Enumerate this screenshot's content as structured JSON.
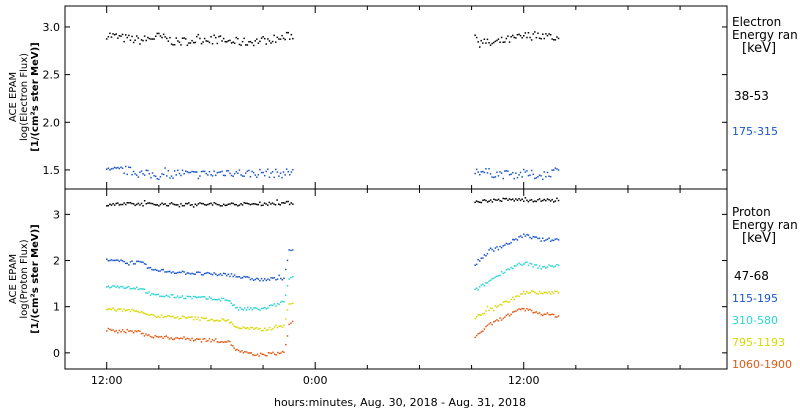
{
  "chart_data": [
    {
      "type": "scatter",
      "panel": "electron",
      "ylabel_lines": [
        "ACE EPAM",
        "log(Electron Flux)",
        "[1/(cm²s ster MeV)]"
      ],
      "legend_title": [
        "Electron",
        "Energy ran",
        "[keV]"
      ],
      "ylim": [
        1.3,
        3.22
      ],
      "y_ticks": [
        "3.0",
        "2.5",
        "2.0",
        "1.5"
      ],
      "gaps": [
        [
          10.8,
          21.2
        ]
      ],
      "series": [
        {
          "name": "38-53",
          "color": "#000000",
          "points": [
            [
              0,
              2.92
            ],
            [
              1,
              2.88
            ],
            [
              2,
              2.86
            ],
            [
              3,
              2.9
            ],
            [
              4,
              2.84
            ],
            [
              5,
              2.86
            ],
            [
              6,
              2.88
            ],
            [
              7,
              2.85
            ],
            [
              8,
              2.84
            ],
            [
              9,
              2.86
            ],
            [
              10,
              2.88
            ],
            [
              10.8,
              2.92
            ],
            [
              21.2,
              2.9
            ],
            [
              22,
              2.82
            ],
            [
              23,
              2.86
            ],
            [
              24,
              2.9
            ],
            [
              25,
              2.92
            ],
            [
              26,
              2.88
            ]
          ]
        },
        {
          "name": "175-315",
          "color": "#1a55cc",
          "points": [
            [
              0,
              1.48
            ],
            [
              1,
              1.5
            ],
            [
              2,
              1.46
            ],
            [
              3,
              1.44
            ],
            [
              4,
              1.47
            ],
            [
              5,
              1.45
            ],
            [
              6,
              1.46
            ],
            [
              7,
              1.48
            ],
            [
              8,
              1.46
            ],
            [
              9,
              1.47
            ],
            [
              10,
              1.46
            ],
            [
              10.8,
              1.48
            ],
            [
              21.2,
              1.5
            ],
            [
              22,
              1.47
            ],
            [
              23,
              1.45
            ],
            [
              24,
              1.46
            ],
            [
              25,
              1.44
            ],
            [
              26,
              1.5
            ]
          ]
        }
      ]
    },
    {
      "type": "scatter",
      "panel": "proton",
      "ylabel_lines": [
        "ACE EPAM",
        "log(Proton Flux)",
        "[1/(cm²s ster MeV)]"
      ],
      "legend_title": [
        "Proton",
        "Energy ran",
        "[keV]"
      ],
      "ylim": [
        -0.35,
        3.55
      ],
      "y_ticks": [
        "3",
        "2",
        "1",
        "0"
      ],
      "gaps": [
        [
          10.8,
          21.2
        ]
      ],
      "series": [
        {
          "name": "47-68",
          "color": "#000000",
          "points": [
            [
              0,
              3.22
            ],
            [
              2,
              3.22
            ],
            [
              4,
              3.22
            ],
            [
              6,
              3.22
            ],
            [
              8,
              3.22
            ],
            [
              10.8,
              3.25
            ],
            [
              21.2,
              3.28
            ],
            [
              23,
              3.32
            ],
            [
              26,
              3.3
            ]
          ]
        },
        {
          "name": "115-195",
          "color": "#1a55cc",
          "points": [
            [
              0,
              2.0
            ],
            [
              2,
              1.95
            ],
            [
              2.6,
              1.8
            ],
            [
              4,
              1.75
            ],
            [
              6,
              1.7
            ],
            [
              7,
              1.7
            ],
            [
              8,
              1.62
            ],
            [
              9,
              1.58
            ],
            [
              10.2,
              1.62
            ],
            [
              10.5,
              2.2
            ],
            [
              10.8,
              2.2
            ],
            [
              21.2,
              1.92
            ],
            [
              22,
              2.2
            ],
            [
              23,
              2.35
            ],
            [
              24,
              2.55
            ],
            [
              25,
              2.45
            ],
            [
              26,
              2.45
            ]
          ]
        },
        {
          "name": "310-580",
          "color": "#2ad4d4",
          "points": [
            [
              0,
              1.45
            ],
            [
              2,
              1.4
            ],
            [
              2.6,
              1.25
            ],
            [
              5,
              1.2
            ],
            [
              7,
              1.15
            ],
            [
              7.5,
              0.95
            ],
            [
              9,
              0.95
            ],
            [
              10.2,
              1.1
            ],
            [
              10.5,
              1.6
            ],
            [
              10.8,
              1.65
            ],
            [
              21.2,
              1.35
            ],
            [
              22,
              1.55
            ],
            [
              23,
              1.8
            ],
            [
              24,
              1.95
            ],
            [
              25,
              1.85
            ],
            [
              26,
              1.9
            ]
          ]
        },
        {
          "name": "795-1193",
          "color": "#d8d800",
          "points": [
            [
              0,
              0.95
            ],
            [
              2,
              0.9
            ],
            [
              2.6,
              0.8
            ],
            [
              5,
              0.75
            ],
            [
              7,
              0.7
            ],
            [
              7.5,
              0.55
            ],
            [
              9,
              0.5
            ],
            [
              10.2,
              0.6
            ],
            [
              10.5,
              1.05
            ],
            [
              10.8,
              1.1
            ],
            [
              21.2,
              0.75
            ],
            [
              22,
              0.95
            ],
            [
              23,
              1.1
            ],
            [
              24,
              1.3
            ],
            [
              25,
              1.3
            ],
            [
              26,
              1.3
            ]
          ]
        },
        {
          "name": "1060-1900",
          "color": "#e05a14",
          "points": [
            [
              0,
              0.5
            ],
            [
              2,
              0.45
            ],
            [
              2.6,
              0.35
            ],
            [
              5,
              0.3
            ],
            [
              7,
              0.25
            ],
            [
              7.5,
              0.05
            ],
            [
              8.5,
              -0.05
            ],
            [
              10.2,
              0.0
            ],
            [
              10.5,
              0.6
            ],
            [
              10.8,
              0.7
            ],
            [
              21.2,
              0.35
            ],
            [
              22,
              0.6
            ],
            [
              23,
              0.8
            ],
            [
              24,
              0.95
            ],
            [
              25,
              0.85
            ],
            [
              26,
              0.8
            ]
          ]
        }
      ]
    }
  ],
  "x_axis": {
    "range_hours": [
      -2.4,
      35.7
    ],
    "ticks": [
      {
        "x": 0,
        "label": "12:00"
      },
      {
        "x": 12,
        "label": "0:00"
      },
      {
        "x": 24,
        "label": "12:00"
      }
    ],
    "title": "hours:minutes, Aug. 30, 2018 - Aug. 31, 2018"
  }
}
